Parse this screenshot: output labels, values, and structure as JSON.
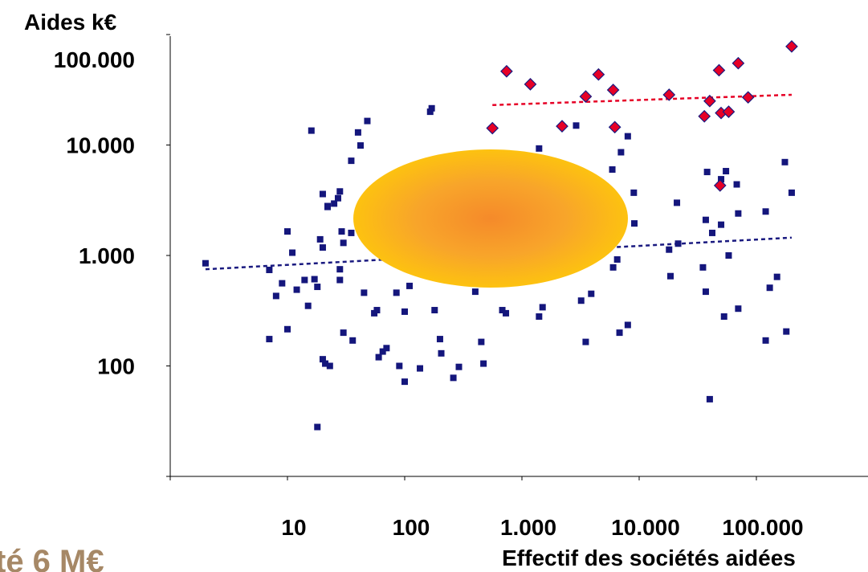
{
  "chart_data": {
    "type": "scatter",
    "title": "",
    "ylabel": "Aides k€",
    "xlabel": "Effectif des sociétés aidées",
    "x_scale": "log",
    "y_scale": "log",
    "xlim": [
      1,
      1000000
    ],
    "ylim": [
      10,
      200000
    ],
    "x_ticks": [
      10,
      100,
      1000,
      10000,
      100000
    ],
    "x_tick_labels": [
      "10",
      "100",
      "1.000",
      "10.000",
      "100.000"
    ],
    "y_ticks": [
      100,
      1000,
      10000,
      100000
    ],
    "y_tick_labels": [
      "100",
      "1.000",
      "10.000",
      "100.000"
    ],
    "grid": false,
    "legend": "none",
    "note_text": "té 6 M€",
    "colors": {
      "series_blue": "#14167c",
      "series_red": "#e60026",
      "trend_blue": "#1a1a80",
      "trend_red": "#e60026",
      "ellipse_center": "#f58a2a",
      "ellipse_edge": "#fdc210",
      "note": "#a68866"
    },
    "series": [
      {
        "marker": "square",
        "color": "#14167c",
        "points": [
          [
            2,
            850
          ],
          [
            7,
            740
          ],
          [
            7,
            175
          ],
          [
            8,
            430
          ],
          [
            9,
            560
          ],
          [
            10,
            1650
          ],
          [
            10,
            215
          ],
          [
            11,
            1060
          ],
          [
            12,
            490
          ],
          [
            14,
            600
          ],
          [
            15,
            350
          ],
          [
            16,
            13500
          ],
          [
            17,
            610
          ],
          [
            18,
            520
          ],
          [
            18,
            28
          ],
          [
            19,
            1400
          ],
          [
            20,
            3600
          ],
          [
            20,
            1180
          ],
          [
            20,
            115
          ],
          [
            21,
            105
          ],
          [
            22,
            2750
          ],
          [
            22,
            2800
          ],
          [
            23,
            100
          ],
          [
            25,
            2950
          ],
          [
            27,
            3300
          ],
          [
            28,
            3800
          ],
          [
            28,
            750
          ],
          [
            28,
            600
          ],
          [
            29,
            1650
          ],
          [
            30,
            1300
          ],
          [
            30,
            200
          ],
          [
            35,
            7200
          ],
          [
            35,
            1600
          ],
          [
            36,
            170
          ],
          [
            40,
            13000
          ],
          [
            42,
            9900
          ],
          [
            45,
            460
          ],
          [
            48,
            16500
          ],
          [
            55,
            300
          ],
          [
            58,
            320
          ],
          [
            60,
            120
          ],
          [
            65,
            135
          ],
          [
            70,
            145
          ],
          [
            85,
            460
          ],
          [
            90,
            100
          ],
          [
            100,
            310
          ],
          [
            100,
            72
          ],
          [
            110,
            530
          ],
          [
            135,
            95
          ],
          [
            165,
            20000
          ],
          [
            170,
            21500
          ],
          [
            180,
            320
          ],
          [
            200,
            175
          ],
          [
            205,
            130
          ],
          [
            260,
            78
          ],
          [
            290,
            98
          ],
          [
            400,
            470
          ],
          [
            450,
            165
          ],
          [
            470,
            105
          ],
          [
            680,
            320
          ],
          [
            730,
            300
          ],
          [
            1400,
            9300
          ],
          [
            1400,
            280
          ],
          [
            1500,
            340
          ],
          [
            2900,
            15000
          ],
          [
            3200,
            390
          ],
          [
            3500,
            165
          ],
          [
            3900,
            450
          ],
          [
            5900,
            6000
          ],
          [
            6000,
            780
          ],
          [
            6500,
            920
          ],
          [
            6800,
            200
          ],
          [
            7000,
            8600
          ],
          [
            8000,
            12000
          ],
          [
            8000,
            235
          ],
          [
            9000,
            3700
          ],
          [
            9100,
            1950
          ],
          [
            18000,
            1130
          ],
          [
            18500,
            650
          ],
          [
            21000,
            3000
          ],
          [
            21500,
            1280
          ],
          [
            35000,
            780
          ],
          [
            37000,
            2100
          ],
          [
            37000,
            470
          ],
          [
            38000,
            5700
          ],
          [
            40000,
            50
          ],
          [
            42000,
            1600
          ],
          [
            50000,
            4900
          ],
          [
            50000,
            1900
          ],
          [
            53000,
            280
          ],
          [
            55000,
            5800
          ],
          [
            58000,
            1000
          ],
          [
            68000,
            4400
          ],
          [
            70000,
            2400
          ],
          [
            70000,
            330
          ],
          [
            120000,
            2500
          ],
          [
            120000,
            170
          ],
          [
            130000,
            510
          ],
          [
            150000,
            640
          ],
          [
            175000,
            7000
          ],
          [
            180000,
            205
          ],
          [
            200000,
            3700
          ]
        ]
      },
      {
        "marker": "diamond",
        "color": "#e60026",
        "points": [
          [
            560,
            14200
          ],
          [
            740,
            46500
          ],
          [
            1180,
            35500
          ],
          [
            2200,
            14800
          ],
          [
            3500,
            27500
          ],
          [
            4500,
            43500
          ],
          [
            6000,
            31500
          ],
          [
            6200,
            14500
          ],
          [
            18000,
            28500
          ],
          [
            36000,
            18200
          ],
          [
            40000,
            25000
          ],
          [
            48000,
            47500
          ],
          [
            49000,
            4300
          ],
          [
            50000,
            19500
          ],
          [
            58000,
            20000
          ],
          [
            70000,
            55000
          ],
          [
            85000,
            27000
          ],
          [
            200000,
            78000
          ]
        ]
      }
    ],
    "trendlines": [
      {
        "color": "#1a1a80",
        "style": "dotted",
        "from": [
          2,
          750
        ],
        "to": [
          200000,
          1450
        ]
      },
      {
        "color": "#e60026",
        "style": "dotted",
        "from": [
          560,
          23000
        ],
        "to": [
          200000,
          28500
        ]
      }
    ]
  }
}
